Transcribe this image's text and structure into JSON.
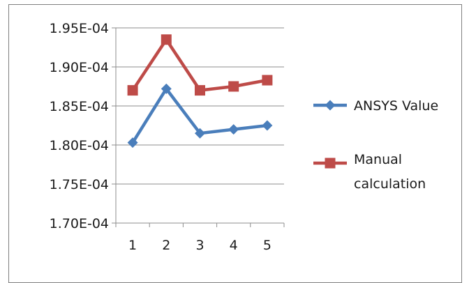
{
  "chart_data": {
    "type": "line",
    "title": "",
    "xlabel": "",
    "ylabel": "",
    "x": [
      1,
      2,
      3,
      4,
      5
    ],
    "x_tick_labels": [
      "1",
      "2",
      "3",
      "4",
      "5"
    ],
    "y_tick_values": [
      0.00017,
      0.000175,
      0.00018,
      0.000185,
      0.00019,
      0.000195
    ],
    "y_tick_labels": [
      "1.70E-04",
      "1.75E-04",
      "1.80E-04",
      "1.85E-04",
      "1.90E-04",
      "1.95E-04"
    ],
    "ylim": [
      0.00017,
      0.000195
    ],
    "grid": "horizontal",
    "legend_position": "right",
    "series": [
      {
        "name": "ANSYS Value",
        "legend_lines": [
          "ANSYS Value"
        ],
        "color": "#4a7ebb",
        "marker": "diamond",
        "values": [
          0.0001803,
          0.0001872,
          0.0001815,
          0.000182,
          0.0001825
        ]
      },
      {
        "name": "Manual calculation",
        "legend_lines": [
          "Manual",
          "calculation"
        ],
        "color": "#be4b48",
        "marker": "square",
        "values": [
          0.000187,
          0.0001935,
          0.000187,
          0.0001875,
          0.0001883
        ]
      }
    ]
  }
}
